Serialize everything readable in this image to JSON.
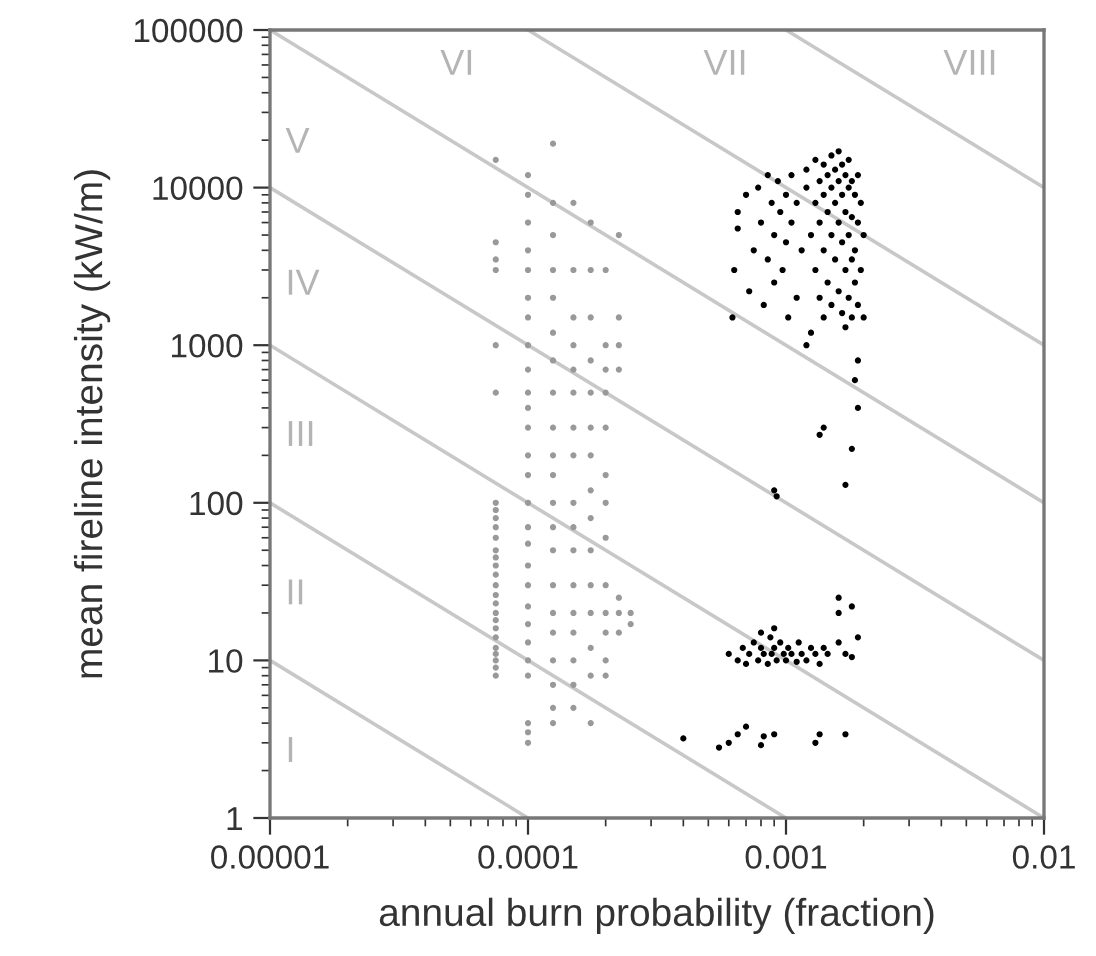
{
  "chart_data": {
    "type": "scatter",
    "xlabel": "annual burn probability (fraction)",
    "ylabel": "mean fireline intensity (kW/m)",
    "log": "xy",
    "marker": "circle",
    "xlim": [
      1e-05,
      0.01
    ],
    "ylim": [
      1,
      100000
    ],
    "xticks": [
      {
        "value": 1e-05,
        "label": "0.00001"
      },
      {
        "value": 0.0001,
        "label": "0.0001"
      },
      {
        "value": 0.001,
        "label": "0.001"
      },
      {
        "value": 0.01,
        "label": "0.01"
      }
    ],
    "yticks": [
      1,
      10,
      100,
      1000,
      10000,
      100000
    ],
    "annotations": [
      "I",
      "II",
      "III",
      "IV",
      "V",
      "VI",
      "VII",
      "VIII"
    ],
    "series": [
      {
        "type": "line",
        "marker": "none",
        "color": "#c8c8c8",
        "x": [
          1e-05,
          0.0001
        ],
        "values": [
          10,
          1
        ]
      },
      {
        "type": "line",
        "marker": "none",
        "color": "#c8c8c8",
        "x": [
          1e-05,
          0.001
        ],
        "values": [
          100,
          1
        ]
      },
      {
        "type": "line",
        "marker": "none",
        "color": "#c8c8c8",
        "x": [
          1e-05,
          0.01
        ],
        "values": [
          1000,
          1
        ]
      },
      {
        "type": "line",
        "marker": "none",
        "color": "#c8c8c8",
        "x": [
          1e-05,
          0.01
        ],
        "values": [
          10000,
          10
        ]
      },
      {
        "type": "line",
        "marker": "none",
        "color": "#c8c8c8",
        "x": [
          1e-05,
          0.01
        ],
        "values": [
          100000,
          100
        ]
      },
      {
        "type": "line",
        "marker": "none",
        "color": "#c8c8c8",
        "x": [
          0.0001,
          0.01
        ],
        "values": [
          100000,
          1000
        ]
      },
      {
        "type": "line",
        "marker": "none",
        "color": "#c8c8c8",
        "x": [
          0.001,
          0.01
        ],
        "values": [
          100000,
          10000
        ]
      },
      {
        "color": "#999999",
        "x": [
          7.5e-05,
          7.5e-05,
          7.5e-05,
          7.5e-05,
          7.5e-05,
          7.5e-05,
          7.5e-05,
          7.5e-05,
          7.5e-05,
          7.5e-05,
          7.5e-05,
          7.5e-05,
          7.5e-05,
          7.5e-05,
          7.5e-05,
          7.5e-05,
          7.5e-05,
          7.5e-05,
          7.5e-05,
          7.5e-05,
          7.5e-05,
          7.5e-05,
          7.5e-05,
          7.5e-05,
          7.5e-05,
          7.5e-05,
          7.5e-05,
          0.0001,
          0.0001,
          0.0001,
          0.0001,
          0.0001,
          0.0001,
          0.0001,
          0.0001,
          0.0001,
          0.0001,
          0.0001,
          0.0001,
          0.0001,
          0.0001,
          0.0001,
          0.0001,
          0.0001,
          0.0001,
          0.0001,
          0.0001,
          0.0001,
          0.0001,
          0.0001,
          0.0001,
          0.0001,
          0.0001,
          0.0001,
          0.000125,
          0.000125,
          0.000125,
          0.000125,
          0.000125,
          0.000125,
          0.000125,
          0.000125,
          0.000125,
          0.000125,
          0.000125,
          0.000125,
          0.000125,
          0.000125,
          0.000125,
          0.000125,
          0.000125,
          0.000125,
          0.000125,
          0.000125,
          0.000125,
          0.00015,
          0.00015,
          0.00015,
          0.00015,
          0.00015,
          0.00015,
          0.00015,
          0.00015,
          0.00015,
          0.00015,
          0.00015,
          0.00015,
          0.00015,
          0.00015,
          0.00015,
          0.00015,
          0.00015,
          0.000175,
          0.000175,
          0.000175,
          0.000175,
          0.000175,
          0.000175,
          0.000175,
          0.000175,
          0.000175,
          0.000175,
          0.000175,
          0.000175,
          0.000175,
          0.000175,
          0.000175,
          0.0002,
          0.0002,
          0.0002,
          0.0002,
          0.0002,
          0.0002,
          0.0002,
          0.0002,
          0.0002,
          0.0002,
          0.0002,
          0.0002,
          0.0002,
          0.000225,
          0.000225,
          0.000225,
          0.000225,
          0.000225,
          0.000225,
          0.000225,
          0.00025,
          0.00025
        ],
        "values": [
          8,
          9,
          10,
          11,
          12,
          14,
          16,
          18,
          20,
          23,
          26,
          30,
          35,
          40,
          45,
          50,
          60,
          70,
          80,
          90,
          100,
          500,
          1000,
          3000,
          3500,
          4500,
          15000,
          3,
          3.5,
          4,
          8,
          10,
          13,
          17,
          22,
          30,
          40,
          55,
          70,
          100,
          150,
          200,
          300,
          400,
          500,
          700,
          1000,
          1500,
          2000,
          3000,
          4000,
          6000,
          9000,
          12000,
          4,
          5,
          7,
          10,
          15,
          20,
          30,
          50,
          70,
          100,
          150,
          200,
          300,
          500,
          800,
          1200,
          2000,
          3000,
          5000,
          8000,
          19000,
          5,
          7,
          10,
          15,
          20,
          30,
          50,
          70,
          100,
          200,
          300,
          500,
          700,
          1000,
          1500,
          3000,
          8000,
          4,
          8,
          12,
          20,
          30,
          50,
          80,
          120,
          200,
          300,
          500,
          800,
          1500,
          3000,
          6000,
          8,
          10,
          15,
          20,
          30,
          60,
          100,
          150,
          300,
          500,
          700,
          1000,
          3000,
          15,
          20,
          25,
          700,
          1000,
          1500,
          5000,
          17,
          20
        ]
      },
      {
        "color": "#000000",
        "x": [
          0.00062,
          0.00063,
          0.00065,
          0.00065,
          0.0007,
          0.00072,
          0.00075,
          0.00078,
          0.0008,
          0.00082,
          0.00085,
          0.00085,
          0.00088,
          0.0009,
          0.0009,
          0.00093,
          0.00095,
          0.00097,
          0.001,
          0.001,
          0.00102,
          0.00105,
          0.00105,
          0.0011,
          0.0011,
          0.00115,
          0.0012,
          0.0012,
          0.00125,
          0.00125,
          0.0013,
          0.0013,
          0.0013,
          0.00135,
          0.00135,
          0.00135,
          0.0014,
          0.0014,
          0.0014,
          0.0014,
          0.00145,
          0.00145,
          0.00145,
          0.0015,
          0.0015,
          0.0015,
          0.0015,
          0.00155,
          0.00155,
          0.00155,
          0.0016,
          0.0016,
          0.0016,
          0.0016,
          0.00165,
          0.00165,
          0.00165,
          0.00165,
          0.0017,
          0.0017,
          0.0017,
          0.0017,
          0.00175,
          0.00175,
          0.00175,
          0.00175,
          0.0018,
          0.0018,
          0.0018,
          0.0018,
          0.00185,
          0.00185,
          0.00185,
          0.0019,
          0.0019,
          0.0019,
          0.00195,
          0.00195,
          0.002,
          0.002,
          0.0012,
          0.0019,
          0.00185,
          0.0019,
          0.0014,
          0.00135,
          0.0018,
          0.0017,
          0.0009,
          0.00092,
          0.0016,
          0.0016,
          0.0018,
          0.0019,
          0.0006,
          0.00065,
          0.00068,
          0.0007,
          0.00072,
          0.00075,
          0.00078,
          0.0008,
          0.00082,
          0.00085,
          0.00087,
          0.00088,
          0.0009,
          0.00092,
          0.00095,
          0.00098,
          0.001,
          0.00102,
          0.00105,
          0.0011,
          0.00112,
          0.00115,
          0.0012,
          0.00125,
          0.0013,
          0.00135,
          0.0014,
          0.00145,
          0.0016,
          0.0017,
          0.0018,
          0.0009,
          0.0008,
          0.0004,
          0.00055,
          0.0006,
          0.00065,
          0.0007,
          0.0008,
          0.00082,
          0.0009,
          0.0013,
          0.00135,
          0.0017
        ],
        "values": [
          1500,
          3000,
          5500,
          7000,
          9000,
          2200,
          4000,
          10000,
          6000,
          1800,
          12000,
          3500,
          8000,
          5000,
          2500,
          11000,
          7000,
          3000,
          9000,
          4500,
          1500,
          12000,
          6000,
          8000,
          2000,
          4000,
          10000,
          13000,
          5000,
          1200,
          15000,
          8000,
          3000,
          11000,
          6000,
          2000,
          14000,
          9000,
          4000,
          1500,
          12000,
          7000,
          2500,
          16000,
          10000,
          5000,
          1800,
          13000,
          8000,
          3500,
          17000,
          11000,
          6000,
          2200,
          14000,
          9000,
          4500,
          1600,
          12000,
          7000,
          3000,
          1300,
          15000,
          10000,
          5000,
          2000,
          11000,
          6500,
          3500,
          1500,
          9000,
          4000,
          2500,
          12000,
          6000,
          1800,
          8000,
          3000,
          5000,
          1500,
          1000,
          800,
          600,
          400,
          300,
          270,
          220,
          130,
          120,
          110,
          25,
          20,
          22,
          14,
          11,
          10,
          12,
          9.5,
          11,
          13,
          10,
          12,
          11,
          9.5,
          14,
          11,
          12,
          10,
          13,
          11,
          10,
          12,
          11,
          9.8,
          13,
          11,
          10,
          12,
          11,
          9.5,
          12,
          11,
          13,
          11,
          10.5,
          16,
          15,
          3.2,
          2.8,
          3,
          3.4,
          3.8,
          2.9,
          3.3,
          3.4,
          3,
          3.4,
          3.4
        ]
      }
    ]
  }
}
